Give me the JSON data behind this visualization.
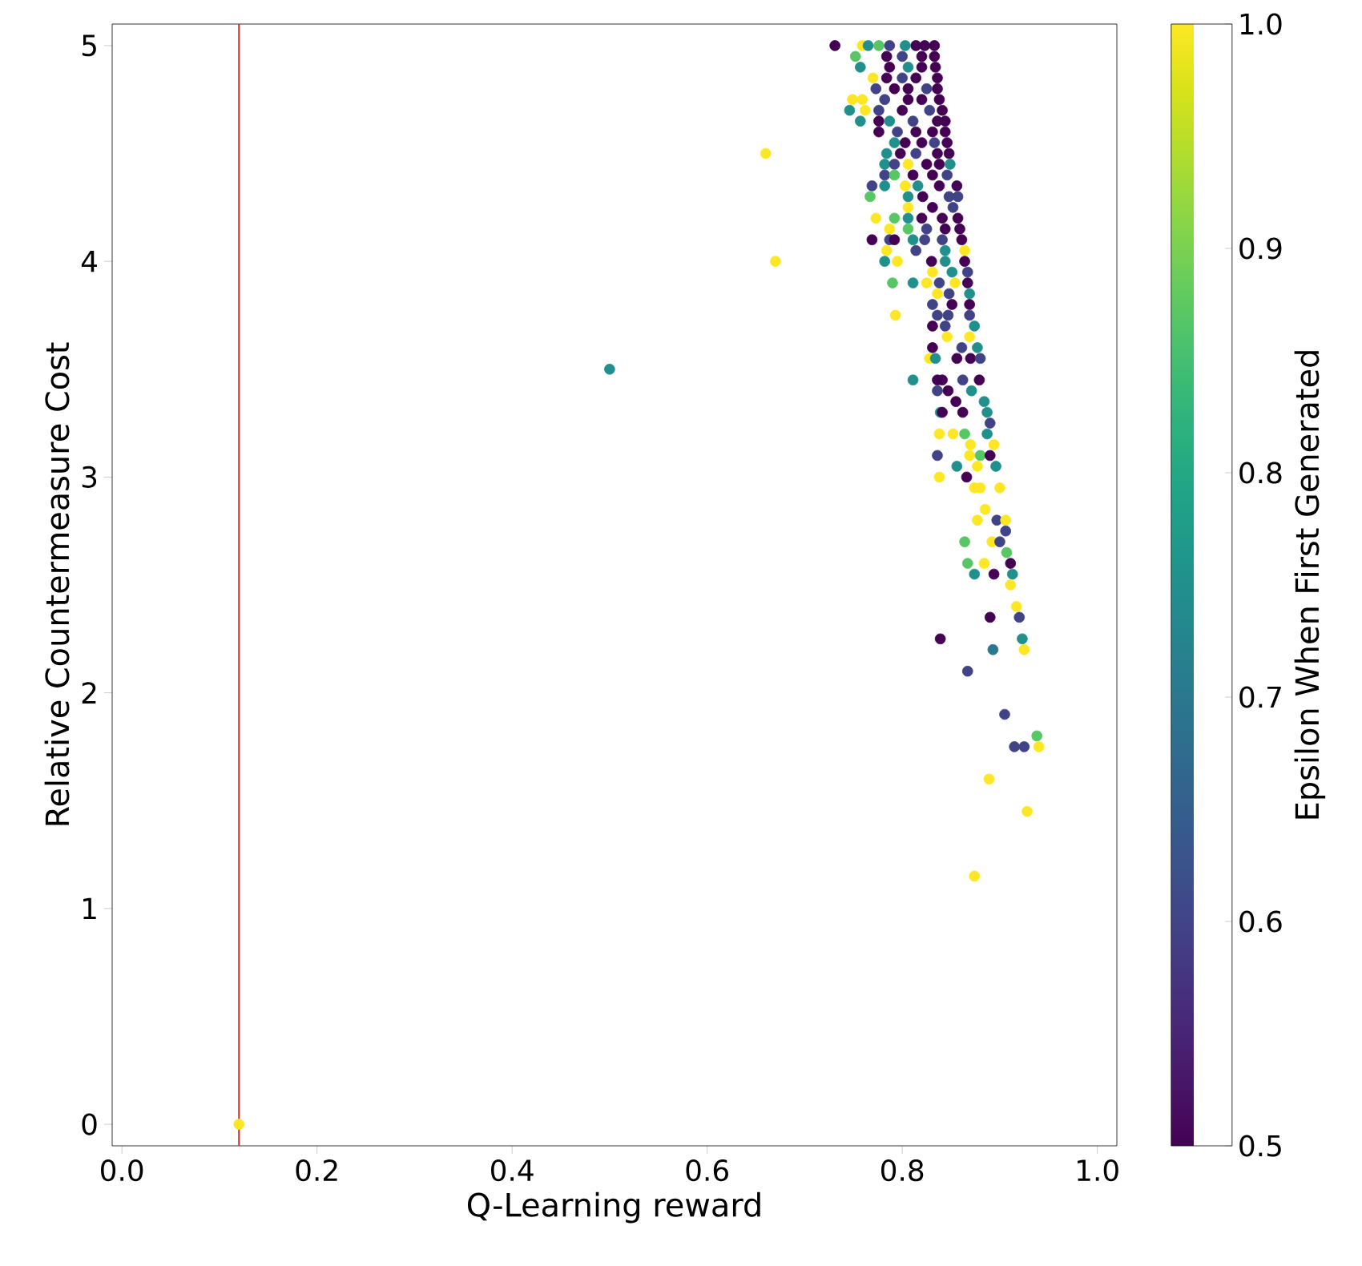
{
  "chart_data": {
    "type": "scatter",
    "xlabel": "Q-Learning reward",
    "ylabel": "Relative Countermeasure Cost",
    "clabel": "Epsilon When First Generated",
    "xlim": [
      -0.01,
      1.02
    ],
    "ylim": [
      -0.1,
      5.1
    ],
    "xticks": [
      {
        "value": 0,
        "label": "0.0"
      },
      {
        "value": 0.2,
        "label": "0.2"
      },
      {
        "value": 0.4,
        "label": "0.4"
      },
      {
        "value": 0.6,
        "label": "0.6"
      },
      {
        "value": 0.8,
        "label": "0.8"
      },
      {
        "value": 1,
        "label": "1.0"
      }
    ],
    "yticks": [
      0,
      1,
      2,
      3,
      4,
      5
    ],
    "clim": [
      0.5,
      1.0
    ],
    "cticks": [
      {
        "value": 0.5,
        "label": "0.5"
      },
      {
        "value": 0.6,
        "label": "0.6"
      },
      {
        "value": 0.7,
        "label": "0.7"
      },
      {
        "value": 0.8,
        "label": "0.8"
      },
      {
        "value": 0.9,
        "label": "0.9"
      },
      {
        "value": 1,
        "label": "1.0"
      }
    ],
    "marker": "circle",
    "grid": false,
    "ref_lines": [
      {
        "axis": "x",
        "value": 0.12,
        "color": "#d62728"
      }
    ],
    "x": [
      0.12,
      0.5,
      0.66,
      0.67,
      0.731,
      0.759,
      0.776,
      0.765,
      0.787,
      0.814,
      0.823,
      0.833,
      0.803,
      0.752,
      0.784,
      0.8,
      0.82,
      0.833,
      0.757,
      0.787,
      0.806,
      0.82,
      0.834,
      0.77,
      0.784,
      0.8,
      0.814,
      0.836,
      0.773,
      0.792,
      0.806,
      0.825,
      0.836,
      0.749,
      0.759,
      0.782,
      0.806,
      0.82,
      0.838,
      0.746,
      0.762,
      0.776,
      0.8,
      0.828,
      0.841,
      0.757,
      0.776,
      0.787,
      0.811,
      0.836,
      0.844,
      0.776,
      0.795,
      0.814,
      0.831,
      0.844,
      0.792,
      0.803,
      0.82,
      0.833,
      0.846,
      0.784,
      0.798,
      0.814,
      0.836,
      0.848,
      0.782,
      0.792,
      0.806,
      0.825,
      0.838,
      0.849,
      0.782,
      0.792,
      0.811,
      0.831,
      0.846,
      0.769,
      0.782,
      0.803,
      0.816,
      0.838,
      0.856,
      0.767,
      0.806,
      0.821,
      0.848,
      0.857,
      0.806,
      0.831,
      0.852,
      0.773,
      0.792,
      0.806,
      0.82,
      0.841,
      0.857,
      0.787,
      0.806,
      0.825,
      0.844,
      0.859,
      0.769,
      0.787,
      0.792,
      0.811,
      0.823,
      0.841,
      0.861,
      0.784,
      0.814,
      0.844,
      0.864,
      0.782,
      0.795,
      0.83,
      0.844,
      0.864,
      0.831,
      0.851,
      0.867,
      0.79,
      0.811,
      0.825,
      0.838,
      0.854,
      0.867,
      0.836,
      0.848,
      0.869,
      0.831,
      0.851,
      0.869,
      0.793,
      0.836,
      0.847,
      0.869,
      0.831,
      0.844,
      0.874,
      0.846,
      0.869,
      0.831,
      0.861,
      0.877,
      0.828,
      0.834,
      0.856,
      0.87,
      0.88,
      0.811,
      0.836,
      0.841,
      0.862,
      0.879,
      0.836,
      0.847,
      0.871,
      0.855,
      0.884,
      0.839,
      0.841,
      0.862,
      0.887,
      0.89,
      0.838,
      0.852,
      0.864,
      0.887,
      0.894,
      0.87,
      0.836,
      0.869,
      0.88,
      0.89,
      0.856,
      0.877,
      0.896,
      0.838,
      0.866,
      0.874,
      0.88,
      0.9,
      0.885,
      0.877,
      0.897,
      0.906,
      0.906,
      0.864,
      0.892,
      0.9,
      0.907,
      0.867,
      0.884,
      0.911,
      0.874,
      0.894,
      0.913,
      0.911,
      0.917,
      0.839,
      0.867,
      0.89,
      0.92,
      0.923,
      0.925,
      0.893,
      0.905,
      0.915,
      0.925,
      0.938,
      0.94,
      0.889,
      0.928,
      0.874
    ],
    "values": [
      0,
      3.5,
      4.5,
      4.0,
      5.0,
      5.0,
      5.0,
      5.0,
      5.0,
      5.0,
      5.0,
      5.0,
      5.0,
      4.95,
      4.95,
      4.95,
      4.95,
      4.95,
      4.9,
      4.9,
      4.9,
      4.9,
      4.9,
      4.85,
      4.85,
      4.85,
      4.85,
      4.85,
      4.8,
      4.8,
      4.8,
      4.8,
      4.8,
      4.75,
      4.75,
      4.75,
      4.75,
      4.75,
      4.75,
      4.7,
      4.7,
      4.7,
      4.7,
      4.7,
      4.7,
      4.65,
      4.65,
      4.65,
      4.65,
      4.65,
      4.65,
      4.6,
      4.6,
      4.6,
      4.6,
      4.6,
      4.55,
      4.55,
      4.55,
      4.55,
      4.55,
      4.5,
      4.5,
      4.5,
      4.5,
      4.5,
      4.45,
      4.45,
      4.45,
      4.45,
      4.45,
      4.45,
      4.4,
      4.4,
      4.4,
      4.4,
      4.4,
      4.35,
      4.35,
      4.35,
      4.35,
      4.35,
      4.35,
      4.3,
      4.3,
      4.3,
      4.3,
      4.3,
      4.25,
      4.25,
      4.25,
      4.2,
      4.2,
      4.2,
      4.2,
      4.2,
      4.2,
      4.15,
      4.15,
      4.15,
      4.15,
      4.15,
      4.1,
      4.1,
      4.1,
      4.1,
      4.1,
      4.1,
      4.1,
      4.05,
      4.05,
      4.05,
      4.05,
      4.0,
      4.0,
      4.0,
      4.0,
      4.0,
      3.95,
      3.95,
      3.95,
      3.9,
      3.9,
      3.9,
      3.9,
      3.9,
      3.9,
      3.85,
      3.85,
      3.85,
      3.8,
      3.8,
      3.8,
      3.75,
      3.75,
      3.75,
      3.75,
      3.7,
      3.7,
      3.7,
      3.65,
      3.65,
      3.6,
      3.6,
      3.6,
      3.55,
      3.55,
      3.55,
      3.55,
      3.55,
      3.45,
      3.45,
      3.45,
      3.45,
      3.45,
      3.4,
      3.4,
      3.4,
      3.35,
      3.35,
      3.3,
      3.3,
      3.3,
      3.3,
      3.25,
      3.2,
      3.2,
      3.2,
      3.2,
      3.15,
      3.15,
      3.1,
      3.1,
      3.1,
      3.1,
      3.05,
      3.05,
      3.05,
      3.0,
      3.0,
      2.95,
      2.95,
      2.95,
      2.85,
      2.8,
      2.8,
      2.8,
      2.75,
      2.7,
      2.7,
      2.7,
      2.65,
      2.6,
      2.6,
      2.6,
      2.55,
      2.55,
      2.55,
      2.5,
      2.4,
      2.25,
      2.1,
      2.35,
      2.35,
      2.25,
      2.2,
      2.2,
      1.9,
      1.75,
      1.75,
      1.8,
      1.75,
      1.6,
      1.45,
      1.15
    ],
    "cvalues": [
      1.0,
      0.75,
      1.0,
      1.0,
      0.5,
      1.0,
      0.87,
      0.75,
      0.6,
      0.5,
      0.5,
      0.5,
      0.75,
      0.87,
      0.5,
      0.6,
      0.5,
      0.5,
      0.75,
      0.5,
      0.75,
      0.5,
      0.5,
      1.0,
      0.5,
      0.6,
      0.5,
      0.5,
      0.6,
      0.5,
      0.5,
      0.6,
      0.5,
      1.0,
      1.0,
      0.6,
      0.5,
      0.5,
      0.5,
      0.75,
      1.0,
      0.6,
      0.5,
      0.6,
      0.5,
      0.75,
      0.5,
      0.75,
      0.6,
      0.5,
      0.5,
      0.5,
      0.6,
      0.5,
      0.5,
      0.5,
      0.75,
      0.5,
      0.5,
      0.6,
      0.5,
      0.75,
      0.5,
      0.6,
      0.5,
      0.5,
      0.75,
      0.6,
      1.0,
      0.5,
      0.5,
      0.75,
      0.6,
      0.87,
      0.5,
      0.5,
      0.6,
      0.6,
      0.75,
      1.0,
      0.75,
      0.5,
      0.5,
      0.87,
      0.75,
      0.5,
      0.6,
      0.6,
      1.0,
      0.5,
      0.6,
      1.0,
      0.87,
      0.75,
      0.5,
      0.5,
      0.5,
      1.0,
      0.87,
      0.6,
      0.5,
      0.5,
      0.5,
      0.6,
      0.5,
      0.75,
      0.6,
      0.6,
      0.5,
      1.0,
      0.6,
      0.75,
      1.0,
      0.75,
      1.0,
      0.5,
      0.75,
      0.5,
      1.0,
      0.75,
      0.6,
      0.87,
      0.75,
      1.0,
      0.6,
      1.0,
      0.5,
      1.0,
      0.6,
      0.75,
      0.6,
      0.5,
      0.5,
      1.0,
      0.6,
      0.6,
      0.6,
      0.5,
      0.6,
      0.75,
      1.0,
      1.0,
      0.5,
      0.6,
      0.75,
      1.0,
      0.75,
      0.5,
      0.5,
      0.6,
      0.75,
      0.5,
      0.5,
      0.6,
      0.5,
      0.6,
      0.5,
      0.75,
      0.5,
      0.75,
      0.75,
      0.5,
      0.5,
      0.75,
      0.6,
      1.0,
      1.0,
      0.87,
      0.75,
      1.0,
      1.0,
      0.6,
      1.0,
      0.87,
      0.5,
      0.75,
      1.0,
      0.75,
      1.0,
      0.5,
      1.0,
      1.0,
      1.0,
      1.0,
      1.0,
      0.6,
      1.0,
      0.6,
      0.87,
      1.0,
      0.6,
      0.87,
      0.87,
      1.0,
      0.5,
      0.75,
      0.5,
      0.75,
      1.0,
      1.0,
      0.5,
      0.6,
      0.5,
      0.6,
      0.75,
      1.0,
      0.7,
      0.6,
      0.6,
      0.6,
      0.87,
      1.0,
      1.0,
      1.0,
      1.0
    ]
  }
}
